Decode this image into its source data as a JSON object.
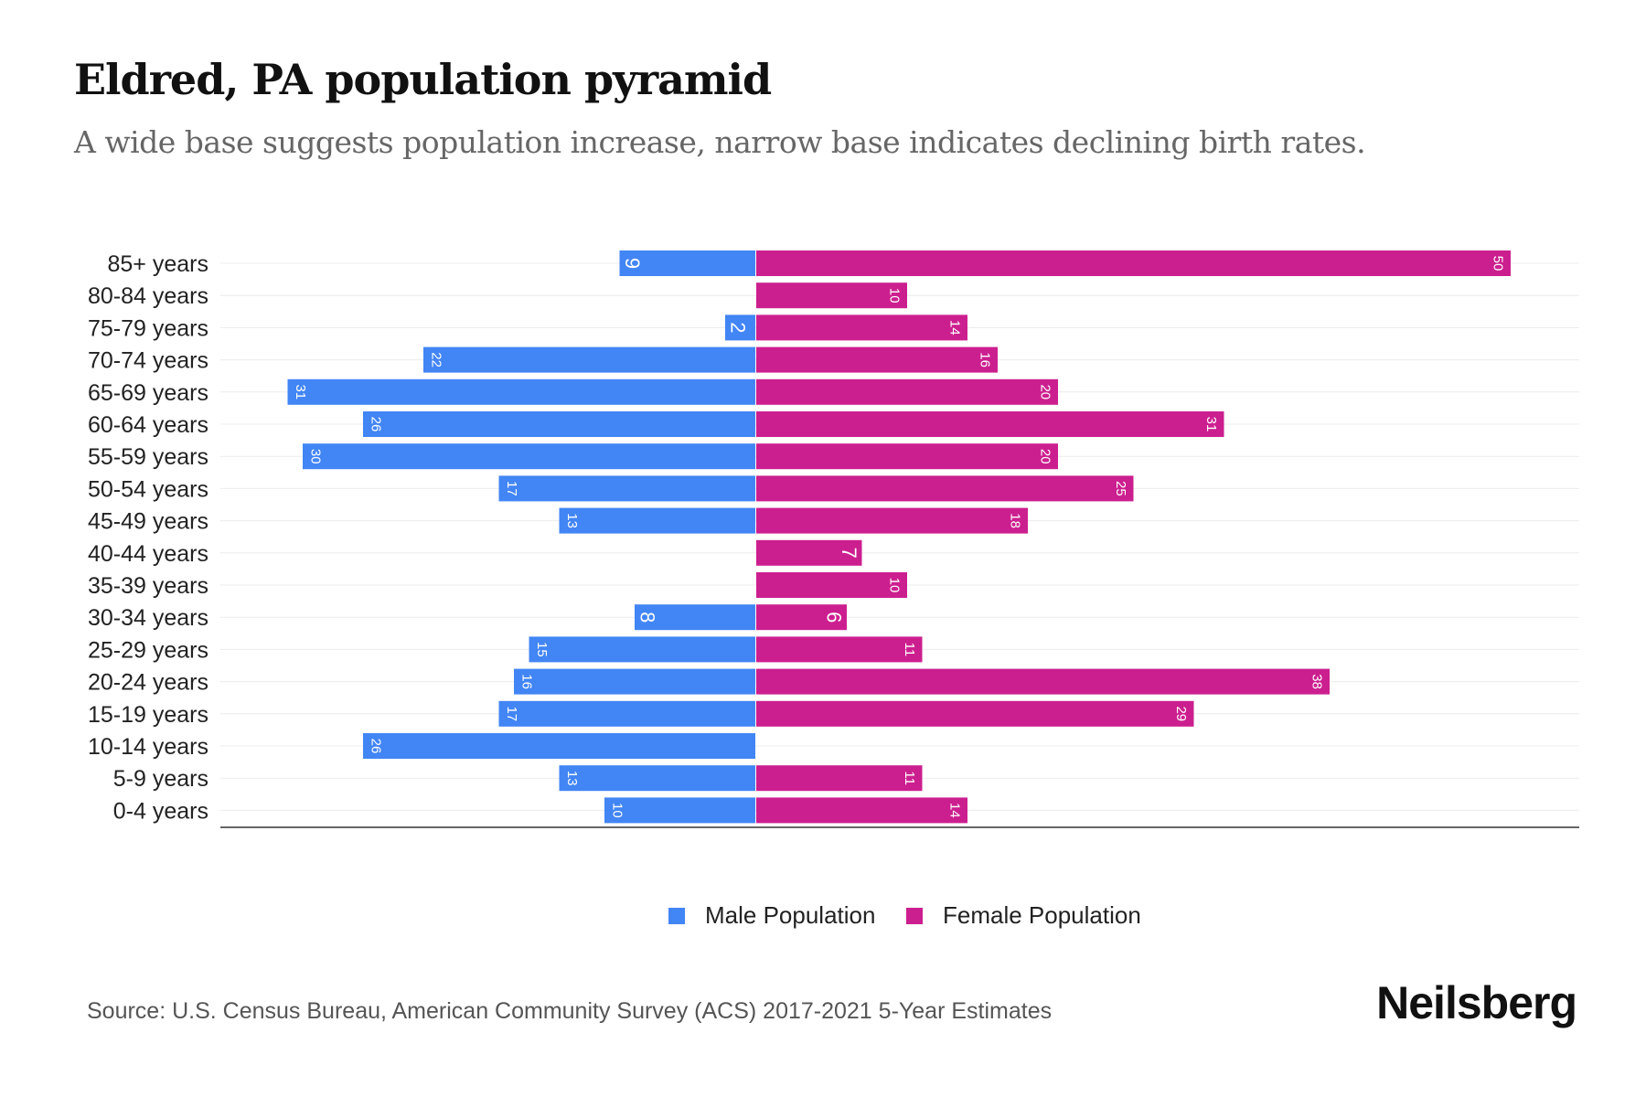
{
  "title": "Eldred, PA population pyramid",
  "subtitle": "A wide base suggests population increase, narrow base indicates declining birth rates.",
  "source": "Source: U.S. Census Bureau, American Community Survey (ACS) 2017-2021 5-Year Estimates",
  "brand": "Neilsberg",
  "colors": {
    "male": "#4285F4",
    "female": "#CC1F8F"
  },
  "chart_data": {
    "type": "bar",
    "orientation": "horizontal-diverging",
    "categories": [
      "85+ years",
      "80-84 years",
      "75-79 years",
      "70-74 years",
      "65-69 years",
      "60-64 years",
      "55-59 years",
      "50-54 years",
      "45-49 years",
      "40-44 years",
      "35-39 years",
      "30-34 years",
      "25-29 years",
      "20-24 years",
      "15-19 years",
      "10-14 years",
      "5-9 years",
      "0-4 years"
    ],
    "series": [
      {
        "name": "Male Population",
        "values": [
          9,
          0,
          2,
          22,
          31,
          26,
          30,
          17,
          13,
          0,
          0,
          8,
          15,
          16,
          17,
          26,
          13,
          10
        ]
      },
      {
        "name": "Female Population",
        "values": [
          50,
          10,
          14,
          16,
          20,
          31,
          20,
          25,
          18,
          7,
          10,
          6,
          11,
          38,
          29,
          0,
          11,
          14
        ]
      }
    ],
    "xlim": [
      -35.5,
      55
    ],
    "legend_position": "bottom",
    "grid": true
  }
}
